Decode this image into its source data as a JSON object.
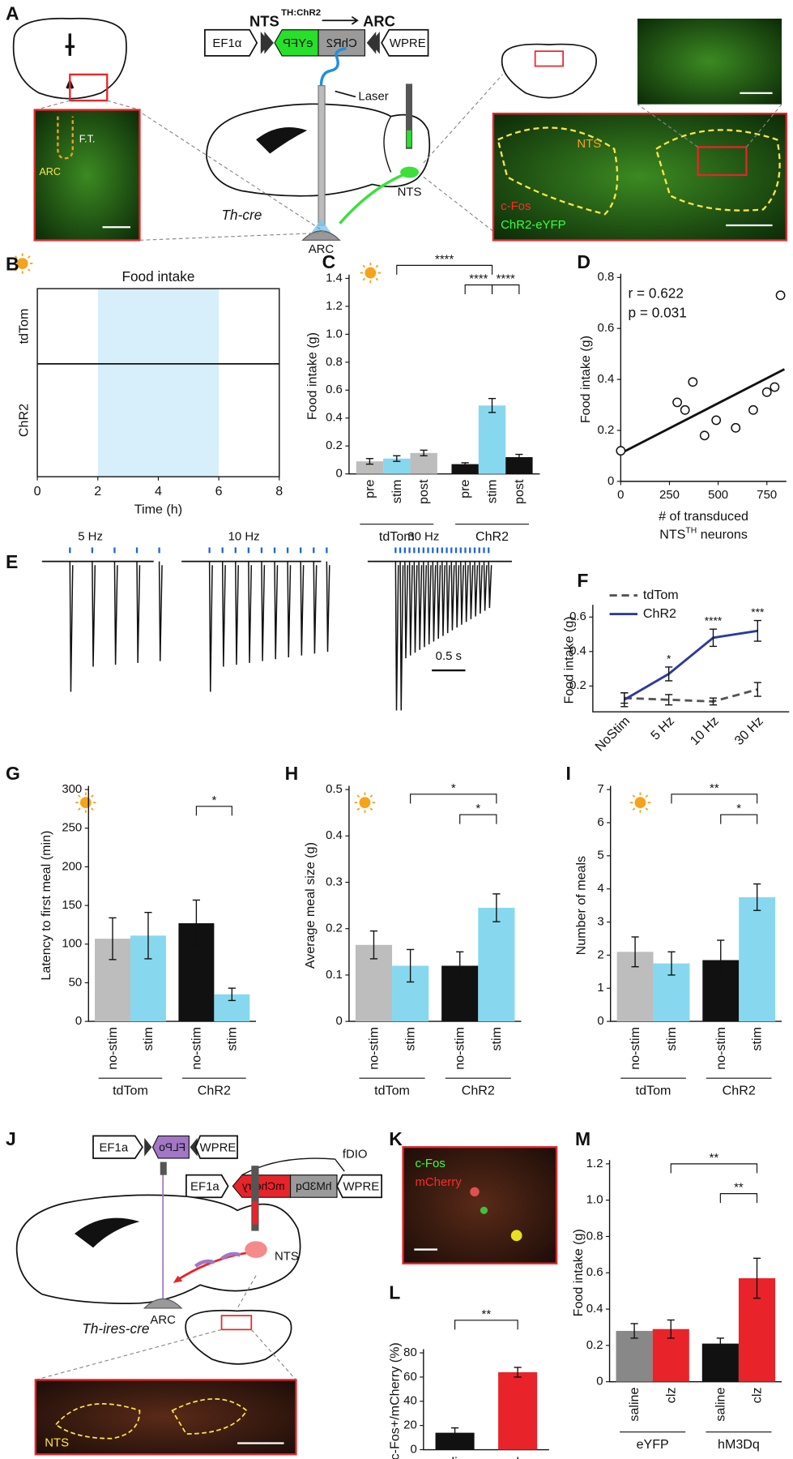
{
  "chart_data": [
    {
      "type": "raster",
      "panel": "B",
      "title": "Food intake",
      "rows": [
        "tdTom",
        "ChR2"
      ],
      "x_label": "Time (h)",
      "xlim": [
        0,
        8
      ],
      "xticks": [
        0,
        2,
        4,
        6,
        8
      ],
      "stim_window": [
        2,
        6
      ]
    },
    {
      "type": "bar",
      "panel": "C",
      "y_label": "Food intake (g)",
      "categories": [
        "pre",
        "stim",
        "post"
      ],
      "series": [
        {
          "name": "tdTom",
          "colors": [
            "#bdbdbd",
            "#87d8ef",
            "#bdbdbd"
          ],
          "values": [
            0.09,
            0.11,
            0.15
          ],
          "errors": [
            0.02,
            0.02,
            0.02
          ]
        },
        {
          "name": "ChR2",
          "colors": [
            "#111111",
            "#87d8ef",
            "#111111"
          ],
          "values": [
            0.07,
            0.49,
            0.12
          ],
          "errors": [
            0.01,
            0.05,
            0.02
          ]
        }
      ],
      "ylim": [
        0,
        1.4
      ],
      "yticks": [
        0,
        0.2,
        0.4,
        0.6,
        0.8,
        {
          "value": 1,
          "label": "1.0"
        },
        1.2,
        1.4
      ],
      "annotations": [
        "****",
        "****",
        "****"
      ]
    },
    {
      "type": "scatter",
      "panel": "D",
      "y_label": "Food intake (g)",
      "x_label": "# of transduced",
      "x_label2": [
        "NTS",
        "TH",
        "neurons"
      ],
      "x": [
        0,
        290,
        330,
        370,
        430,
        490,
        590,
        680,
        750,
        790,
        820
      ],
      "y": [
        0.12,
        0.31,
        0.28,
        0.39,
        0.18,
        0.24,
        0.21,
        0.28,
        0.35,
        0.37,
        0.73
      ],
      "fit": {
        "x": [
          0,
          840
        ],
        "y": [
          0.11,
          0.44
        ]
      },
      "annotations": [
        "r = 0.622",
        "p = 0.031"
      ],
      "xlim": [
        0,
        850
      ],
      "xticks": [
        0,
        250,
        500,
        750
      ],
      "ylim": [
        0,
        0.8
      ],
      "yticks": [
        0,
        0.2,
        0.4,
        0.6,
        0.8
      ]
    },
    {
      "type": "line",
      "panel": "F",
      "y_label": "Food intake (g)",
      "categories": [
        "NoStim",
        "5 Hz",
        "10 Hz",
        "30 Hz"
      ],
      "series": [
        {
          "name": "tdTom",
          "color": "#555555",
          "dashed": true,
          "values": [
            0.13,
            0.12,
            0.11,
            0.18
          ],
          "errors": [
            0.03,
            0.03,
            0.02,
            0.04
          ]
        },
        {
          "name": "ChR2",
          "color": "#2e3a9c",
          "dashed": false,
          "values": [
            0.12,
            0.27,
            0.48,
            0.52
          ],
          "errors": [
            0.04,
            0.04,
            0.05,
            0.06
          ]
        }
      ],
      "ylim": [
        0.05,
        0.65
      ],
      "yticks": [
        0.2,
        0.4,
        0.6
      ],
      "annotations": [
        "*",
        "****",
        "***"
      ],
      "legend": "upper left"
    },
    {
      "type": "bar",
      "panel": "G",
      "y_label": "Latency to first meal (min)",
      "categories": [
        "no-stim",
        "stim"
      ],
      "series": [
        {
          "name": "tdTom",
          "colors": [
            "#bdbdbd",
            "#87d8ef"
          ],
          "values": [
            107,
            111
          ],
          "errors": [
            27,
            30
          ]
        },
        {
          "name": "ChR2",
          "colors": [
            "#111111",
            "#87d8ef"
          ],
          "values": [
            127,
            35
          ],
          "errors": [
            30,
            8
          ]
        }
      ],
      "ylim": [
        0,
        300
      ],
      "yticks": [
        0,
        50,
        100,
        150,
        200,
        250,
        300
      ],
      "annotations": [
        "*"
      ]
    },
    {
      "type": "bar",
      "panel": "H",
      "y_label": "Average meal size (g)",
      "categories": [
        "no-stim",
        "stim"
      ],
      "series": [
        {
          "name": "tdTom",
          "colors": [
            "#bdbdbd",
            "#87d8ef"
          ],
          "values": [
            0.165,
            0.12
          ],
          "errors": [
            0.03,
            0.035
          ]
        },
        {
          "name": "ChR2",
          "colors": [
            "#111111",
            "#87d8ef"
          ],
          "values": [
            0.12,
            0.245
          ],
          "errors": [
            0.03,
            0.03
          ]
        }
      ],
      "ylim": [
        0,
        0.5
      ],
      "yticks": [
        0,
        0.1,
        0.2,
        0.3,
        0.4,
        0.5
      ],
      "annotations": [
        "*",
        "*"
      ]
    },
    {
      "type": "bar",
      "panel": "I",
      "y_label": "Number of meals",
      "categories": [
        "no-stim",
        "stim"
      ],
      "series": [
        {
          "name": "tdTom",
          "colors": [
            "#bdbdbd",
            "#87d8ef"
          ],
          "values": [
            2.1,
            1.75
          ],
          "errors": [
            0.45,
            0.35
          ]
        },
        {
          "name": "ChR2",
          "colors": [
            "#111111",
            "#87d8ef"
          ],
          "values": [
            1.85,
            3.75
          ],
          "errors": [
            0.6,
            0.4
          ]
        }
      ],
      "ylim": [
        0,
        7
      ],
      "yticks": [
        0,
        1,
        2,
        3,
        4,
        5,
        6,
        7
      ],
      "annotations": [
        "**",
        "*"
      ]
    },
    {
      "type": "bar",
      "panel": "L",
      "y_label": "c-Fos+/mCherry (%)",
      "categories": [
        "saline",
        "clz"
      ],
      "values": [
        14,
        64
      ],
      "errors": [
        4,
        4
      ],
      "colors": [
        "#111111",
        "#e8242a"
      ],
      "ylim": [
        0,
        80
      ],
      "yticks": [
        0,
        20,
        40,
        60,
        80
      ],
      "annotations": [
        "**"
      ]
    },
    {
      "type": "bar",
      "panel": "M",
      "y_label": "Food intake (g)",
      "categories": [
        "saline",
        "clz"
      ],
      "series": [
        {
          "name": "eYFP",
          "colors": [
            "#888888",
            "#e8242a"
          ],
          "values": [
            0.28,
            0.29
          ],
          "errors": [
            0.04,
            0.05
          ]
        },
        {
          "name": "hM3Dq",
          "colors": [
            "#111111",
            "#e8242a"
          ],
          "values": [
            0.21,
            0.57
          ],
          "errors": [
            0.03,
            0.11
          ]
        }
      ],
      "ylim": [
        0,
        1.2
      ],
      "yticks": [
        0,
        0.2,
        0.4,
        0.6,
        0.8,
        {
          "value": 1,
          "label": "1.0"
        },
        1.2
      ],
      "annotations": [
        "**",
        "**"
      ]
    }
  ],
  "diagram": {
    "panel_A": "A",
    "panel_E": "E",
    "panel_J": "J",
    "panel_K": "K",
    "a_title": "NTS",
    "a_title_sup": "TH:ChR2",
    "a_title_target": "ARC",
    "a_construct": [
      "EF1α",
      "eYFP",
      "ChR2",
      "WPRE"
    ],
    "a_laser": "Laser",
    "a_ft": "F.T.",
    "a_arc_inset": "ARC",
    "a_mouse": "Th-cre",
    "a_arc": "ARC",
    "a_nts": "NTS",
    "a_nts_inset": "NTS",
    "a_cfos": "c-Fos",
    "a_chr2": "ChR2-eYFP",
    "e_freqs": [
      "5 Hz",
      "10 Hz",
      "30 Hz"
    ],
    "e_scale": "0.5 s",
    "j_construct1": [
      "EF1a",
      "FLPo",
      "WPRE"
    ],
    "j_fdio": "fDIO",
    "j_construct2": [
      "EF1a",
      "mCherry",
      "hM3Dq",
      "WPRE"
    ],
    "j_nts": "NTS",
    "j_arc": "ARC",
    "j_mouse": "Th-ires-cre",
    "j_nts_inset": "NTS",
    "k_cfos": "c-Fos",
    "k_mcherry": "mCherry"
  }
}
